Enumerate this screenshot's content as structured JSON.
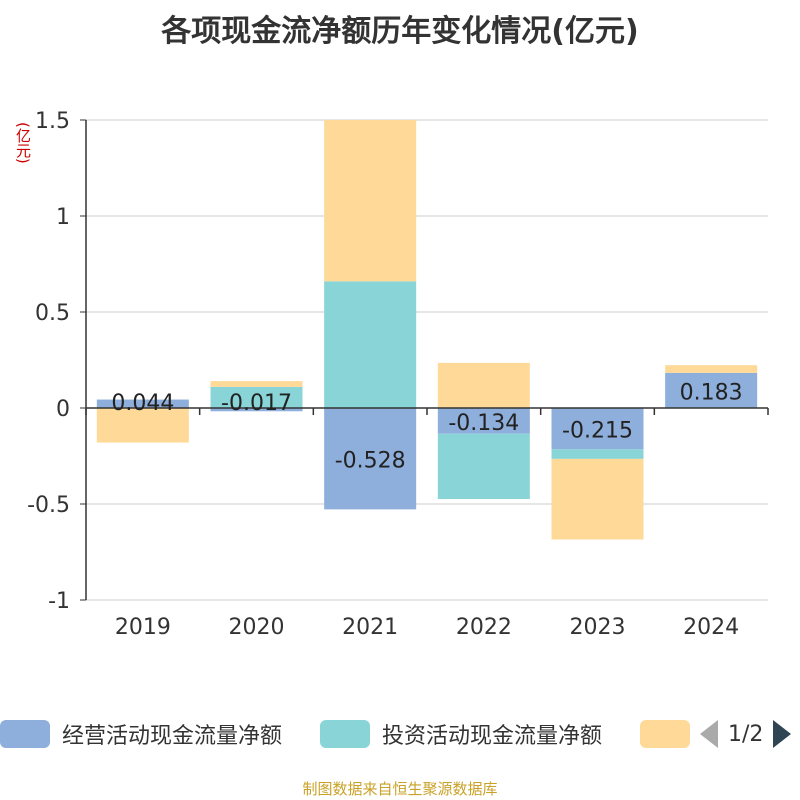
{
  "title": "各项现金流净额历年变化情况(亿元)",
  "unit": "(亿元)",
  "source": "制图数据来自恒生聚源数据库",
  "pager": {
    "text": "1/2"
  },
  "chart_data": {
    "type": "bar",
    "stacked": true,
    "categories": [
      "2019",
      "2020",
      "2021",
      "2022",
      "2023",
      "2024"
    ],
    "ylim": [
      -1,
      1.5
    ],
    "yticks": [
      1.5,
      1,
      0.5,
      0,
      -0.5,
      -1
    ],
    "ytick_labels": [
      "1.5",
      "1",
      "0.5",
      "0",
      "-0.5",
      "-1"
    ],
    "grid": true,
    "legend_position": "bottom",
    "series": [
      {
        "name": "经营活动现金流量净额",
        "color": "#8eaedb",
        "values": [
          0.044,
          -0.017,
          -0.528,
          -0.134,
          -0.215,
          0.183
        ],
        "labels": [
          "0.044",
          "-0.017",
          "-0.528",
          "-0.134",
          "-0.215",
          "0.183"
        ]
      },
      {
        "name": "投资活动现金流量净额",
        "color": "#88d4d6",
        "values": [
          0,
          0.11,
          0.66,
          -0.34,
          -0.05,
          0
        ]
      },
      {
        "name": "",
        "color": "#ffd998",
        "values": [
          -0.18,
          0.03,
          0.84,
          0.235,
          -0.42,
          0.04
        ]
      }
    ]
  }
}
